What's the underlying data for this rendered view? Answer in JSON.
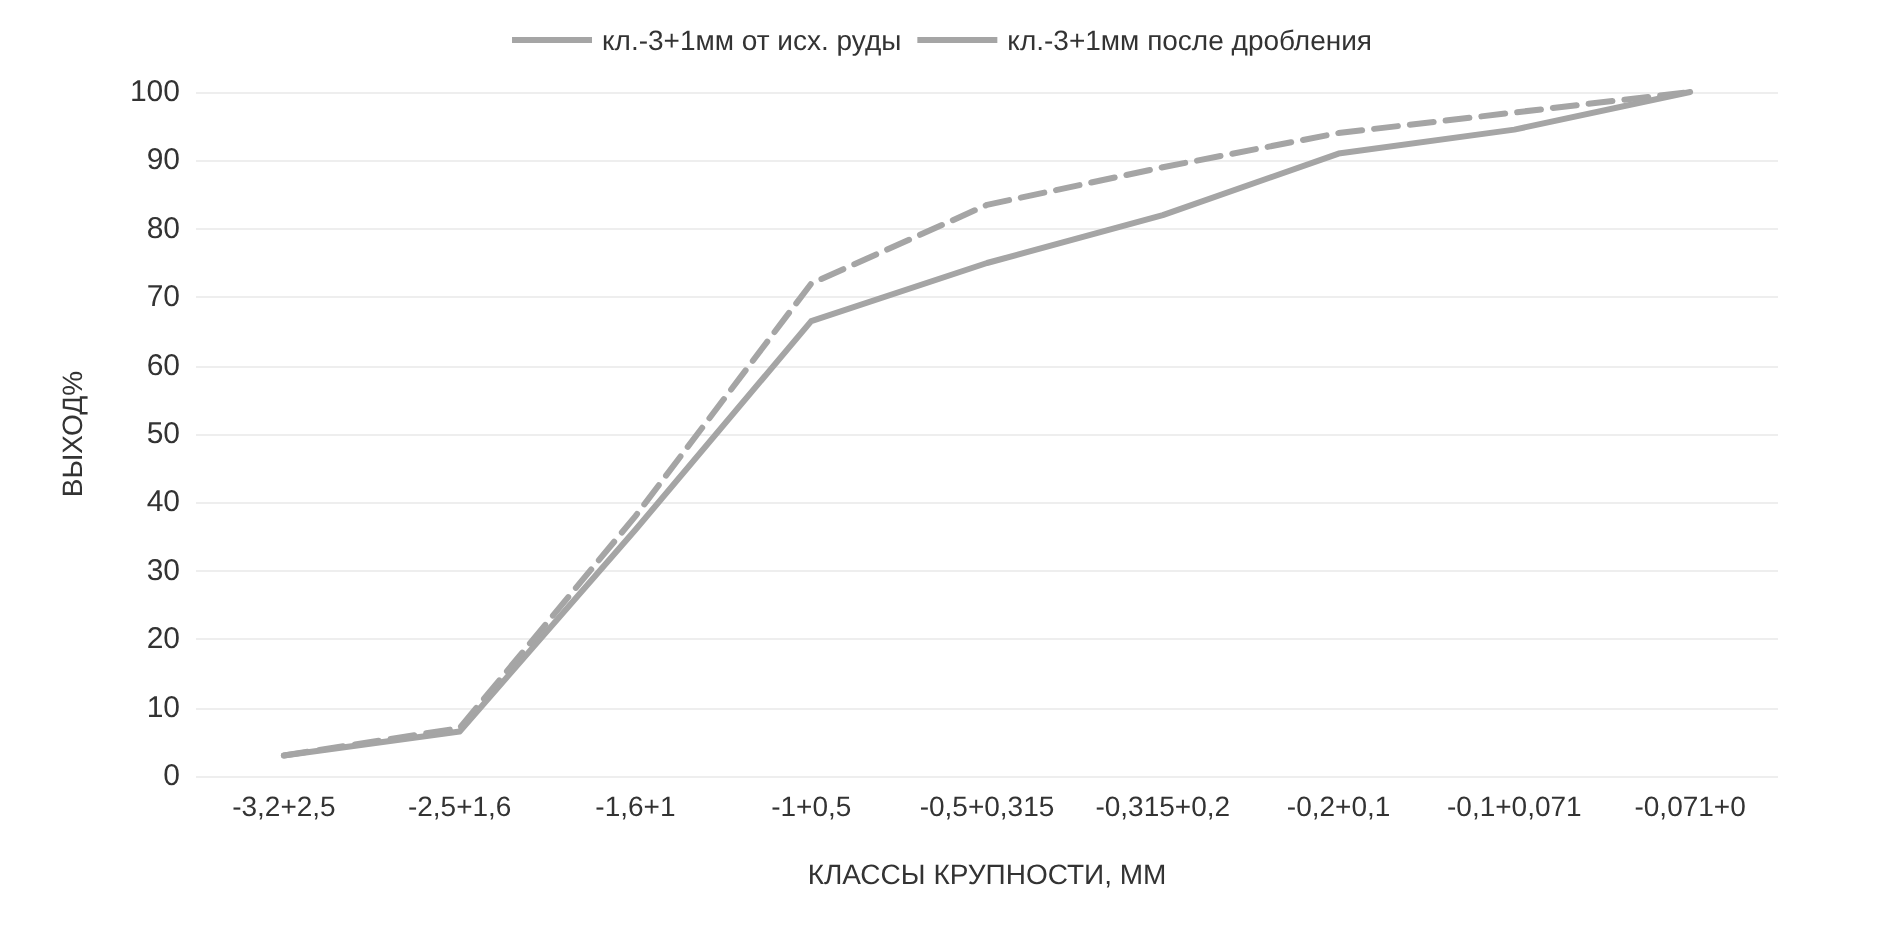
{
  "chart_data": {
    "type": "line",
    "xlabel": "КЛАССЫ КРУПНОСТИ, ММ",
    "ylabel": "ВЫХОД%",
    "categories": [
      "-3,2+2,5",
      "-2,5+1,6",
      "-1,6+1",
      "-1+0,5",
      "-0,5+0,315",
      "-0,315+0,2",
      "-0,2+0,1",
      "-0,1+0,071",
      "-0,071+0"
    ],
    "series": [
      {
        "name": "кл.-3+1мм от исх. руды",
        "color": "#a5a5a5",
        "line_style": "solid",
        "values": [
          3,
          6.5,
          36,
          66.5,
          75,
          82,
          91,
          94.5,
          100
        ]
      },
      {
        "name": "кл.-3+1мм после дробления",
        "color": "#a5a5a5",
        "line_style": "dashed",
        "values": [
          3,
          7,
          38,
          72,
          83.5,
          89,
          94,
          97,
          100
        ]
      }
    ],
    "ylim": [
      0,
      100
    ],
    "yticks": [
      0,
      10,
      20,
      30,
      40,
      50,
      60,
      70,
      80,
      90,
      100
    ],
    "grid": "y",
    "legend": "top",
    "marker": "none"
  }
}
